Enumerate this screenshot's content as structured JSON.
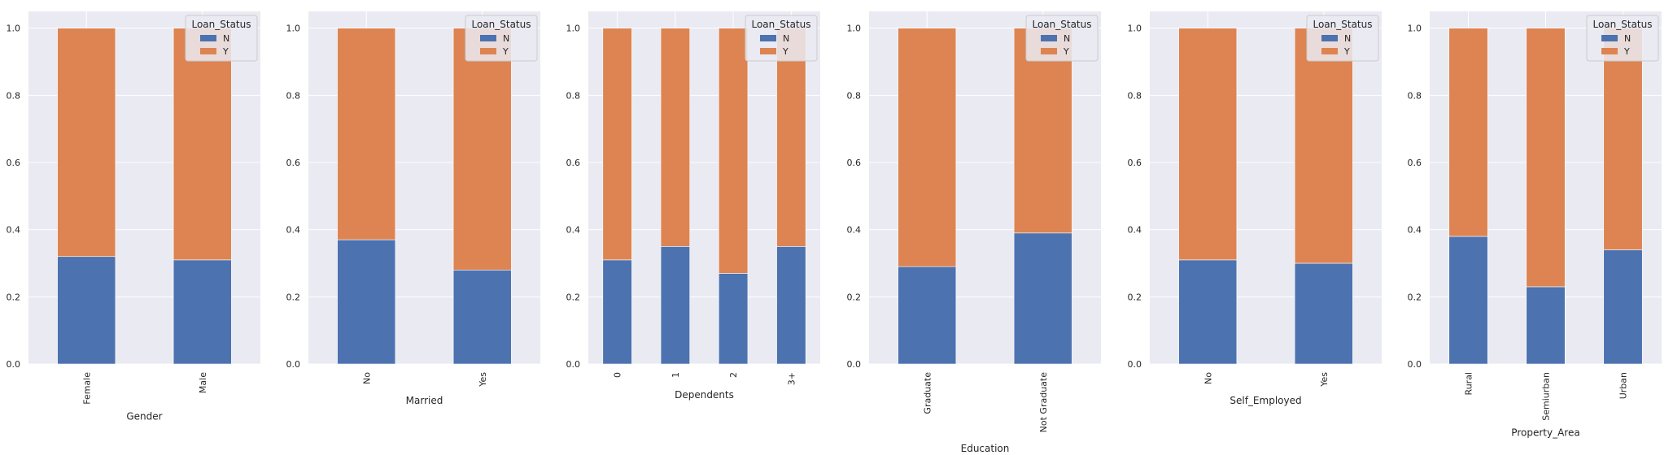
{
  "legend": {
    "title": "Loan_Status",
    "placement": "upper-right",
    "entries": [
      "N",
      "Y"
    ]
  },
  "colors": {
    "N": "#4c72b0",
    "Y": "#dd8452",
    "panel_bg": "#eaeaf2",
    "grid": "#ffffff"
  },
  "chart_data": [
    {
      "type": "bar",
      "stacked": true,
      "xlabel": "Gender",
      "categories": [
        "Female",
        "Male"
      ],
      "series": [
        {
          "name": "N",
          "values": [
            0.32,
            0.31
          ]
        },
        {
          "name": "Y",
          "values": [
            0.68,
            0.69
          ]
        }
      ],
      "ylim": [
        0,
        1.05
      ],
      "yticks": [
        0.0,
        0.2,
        0.4,
        0.6,
        0.8,
        1.0
      ],
      "grid": true
    },
    {
      "type": "bar",
      "stacked": true,
      "xlabel": "Married",
      "categories": [
        "No",
        "Yes"
      ],
      "series": [
        {
          "name": "N",
          "values": [
            0.37,
            0.28
          ]
        },
        {
          "name": "Y",
          "values": [
            0.63,
            0.72
          ]
        }
      ],
      "ylim": [
        0,
        1.05
      ],
      "yticks": [
        0.0,
        0.2,
        0.4,
        0.6,
        0.8,
        1.0
      ],
      "grid": true
    },
    {
      "type": "bar",
      "stacked": true,
      "xlabel": "Dependents",
      "categories": [
        "0",
        "1",
        "2",
        "3+"
      ],
      "series": [
        {
          "name": "N",
          "values": [
            0.31,
            0.35,
            0.27,
            0.35
          ]
        },
        {
          "name": "Y",
          "values": [
            0.69,
            0.65,
            0.73,
            0.65
          ]
        }
      ],
      "ylim": [
        0,
        1.05
      ],
      "yticks": [
        0.0,
        0.2,
        0.4,
        0.6,
        0.8,
        1.0
      ],
      "grid": true
    },
    {
      "type": "bar",
      "stacked": true,
      "xlabel": "Education",
      "categories": [
        "Graduate",
        "Not Graduate"
      ],
      "series": [
        {
          "name": "N",
          "values": [
            0.29,
            0.39
          ]
        },
        {
          "name": "Y",
          "values": [
            0.71,
            0.61
          ]
        }
      ],
      "ylim": [
        0,
        1.05
      ],
      "yticks": [
        0.0,
        0.2,
        0.4,
        0.6,
        0.8,
        1.0
      ],
      "grid": true
    },
    {
      "type": "bar",
      "stacked": true,
      "xlabel": "Self_Employed",
      "categories": [
        "No",
        "Yes"
      ],
      "series": [
        {
          "name": "N",
          "values": [
            0.31,
            0.3
          ]
        },
        {
          "name": "Y",
          "values": [
            0.69,
            0.7
          ]
        }
      ],
      "ylim": [
        0,
        1.05
      ],
      "yticks": [
        0.0,
        0.2,
        0.4,
        0.6,
        0.8,
        1.0
      ],
      "grid": true
    },
    {
      "type": "bar",
      "stacked": true,
      "xlabel": "Property_Area",
      "categories": [
        "Rural",
        "Semiurban",
        "Urban"
      ],
      "series": [
        {
          "name": "N",
          "values": [
            0.38,
            0.23,
            0.34
          ]
        },
        {
          "name": "Y",
          "values": [
            0.62,
            0.77,
            0.66
          ]
        }
      ],
      "ylim": [
        0,
        1.05
      ],
      "yticks": [
        0.0,
        0.2,
        0.4,
        0.6,
        0.8,
        1.0
      ],
      "grid": true
    }
  ]
}
